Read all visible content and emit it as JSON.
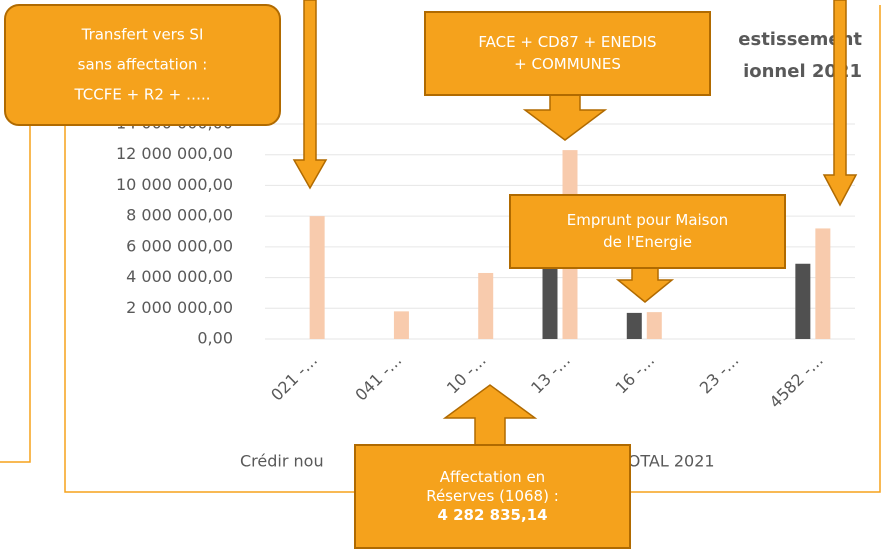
{
  "chart_data": {
    "type": "bar",
    "title": [
      "estissement",
      "ionnel 2021"
    ],
    "categories": [
      "021 -…",
      "041 -…",
      "10 -…",
      "13 -…",
      "16 -…",
      "23 -…",
      "4582 -…"
    ],
    "series": [
      {
        "name": "Crédir nou",
        "color": "#505050",
        "values": [
          null,
          null,
          null,
          5000000,
          1700000,
          null,
          4900000
        ]
      },
      {
        "name": "TOTAL 2021",
        "color": "#f8cbad",
        "values": [
          8000000,
          1800000,
          4300000,
          12300000,
          1750000,
          null,
          7200000
        ]
      }
    ],
    "ylim": [
      0,
      14000000
    ],
    "yticks": [
      {
        "value": 0,
        "label": "0,00"
      },
      {
        "value": 2000000,
        "label": "2 000 000,00"
      },
      {
        "value": 4000000,
        "label": "4 000 000,00"
      },
      {
        "value": 6000000,
        "label": "6 000 000,00"
      },
      {
        "value": 8000000,
        "label": "8 000 000,00"
      },
      {
        "value": 10000000,
        "label": "10 000 000,00"
      },
      {
        "value": 12000000,
        "label": "12 000 000,00"
      },
      {
        "value": 14000000,
        "label": "14 000 000,00"
      }
    ],
    "grid": true
  },
  "callouts": [
    {
      "lines": [
        "Transfert vers SI",
        "sans affectation :",
        "TCCFE + R2 + ….."
      ]
    },
    {
      "lines": [
        "FACE + CD87 + ENEDIS",
        "+ COMMUNES"
      ]
    },
    {
      "lines": [
        "Emprunt pour Maison",
        "de l'Energie"
      ]
    },
    {
      "lines": [
        "Affectation en",
        "Réserves (1068) :",
        "4 282 835,14"
      ]
    }
  ]
}
